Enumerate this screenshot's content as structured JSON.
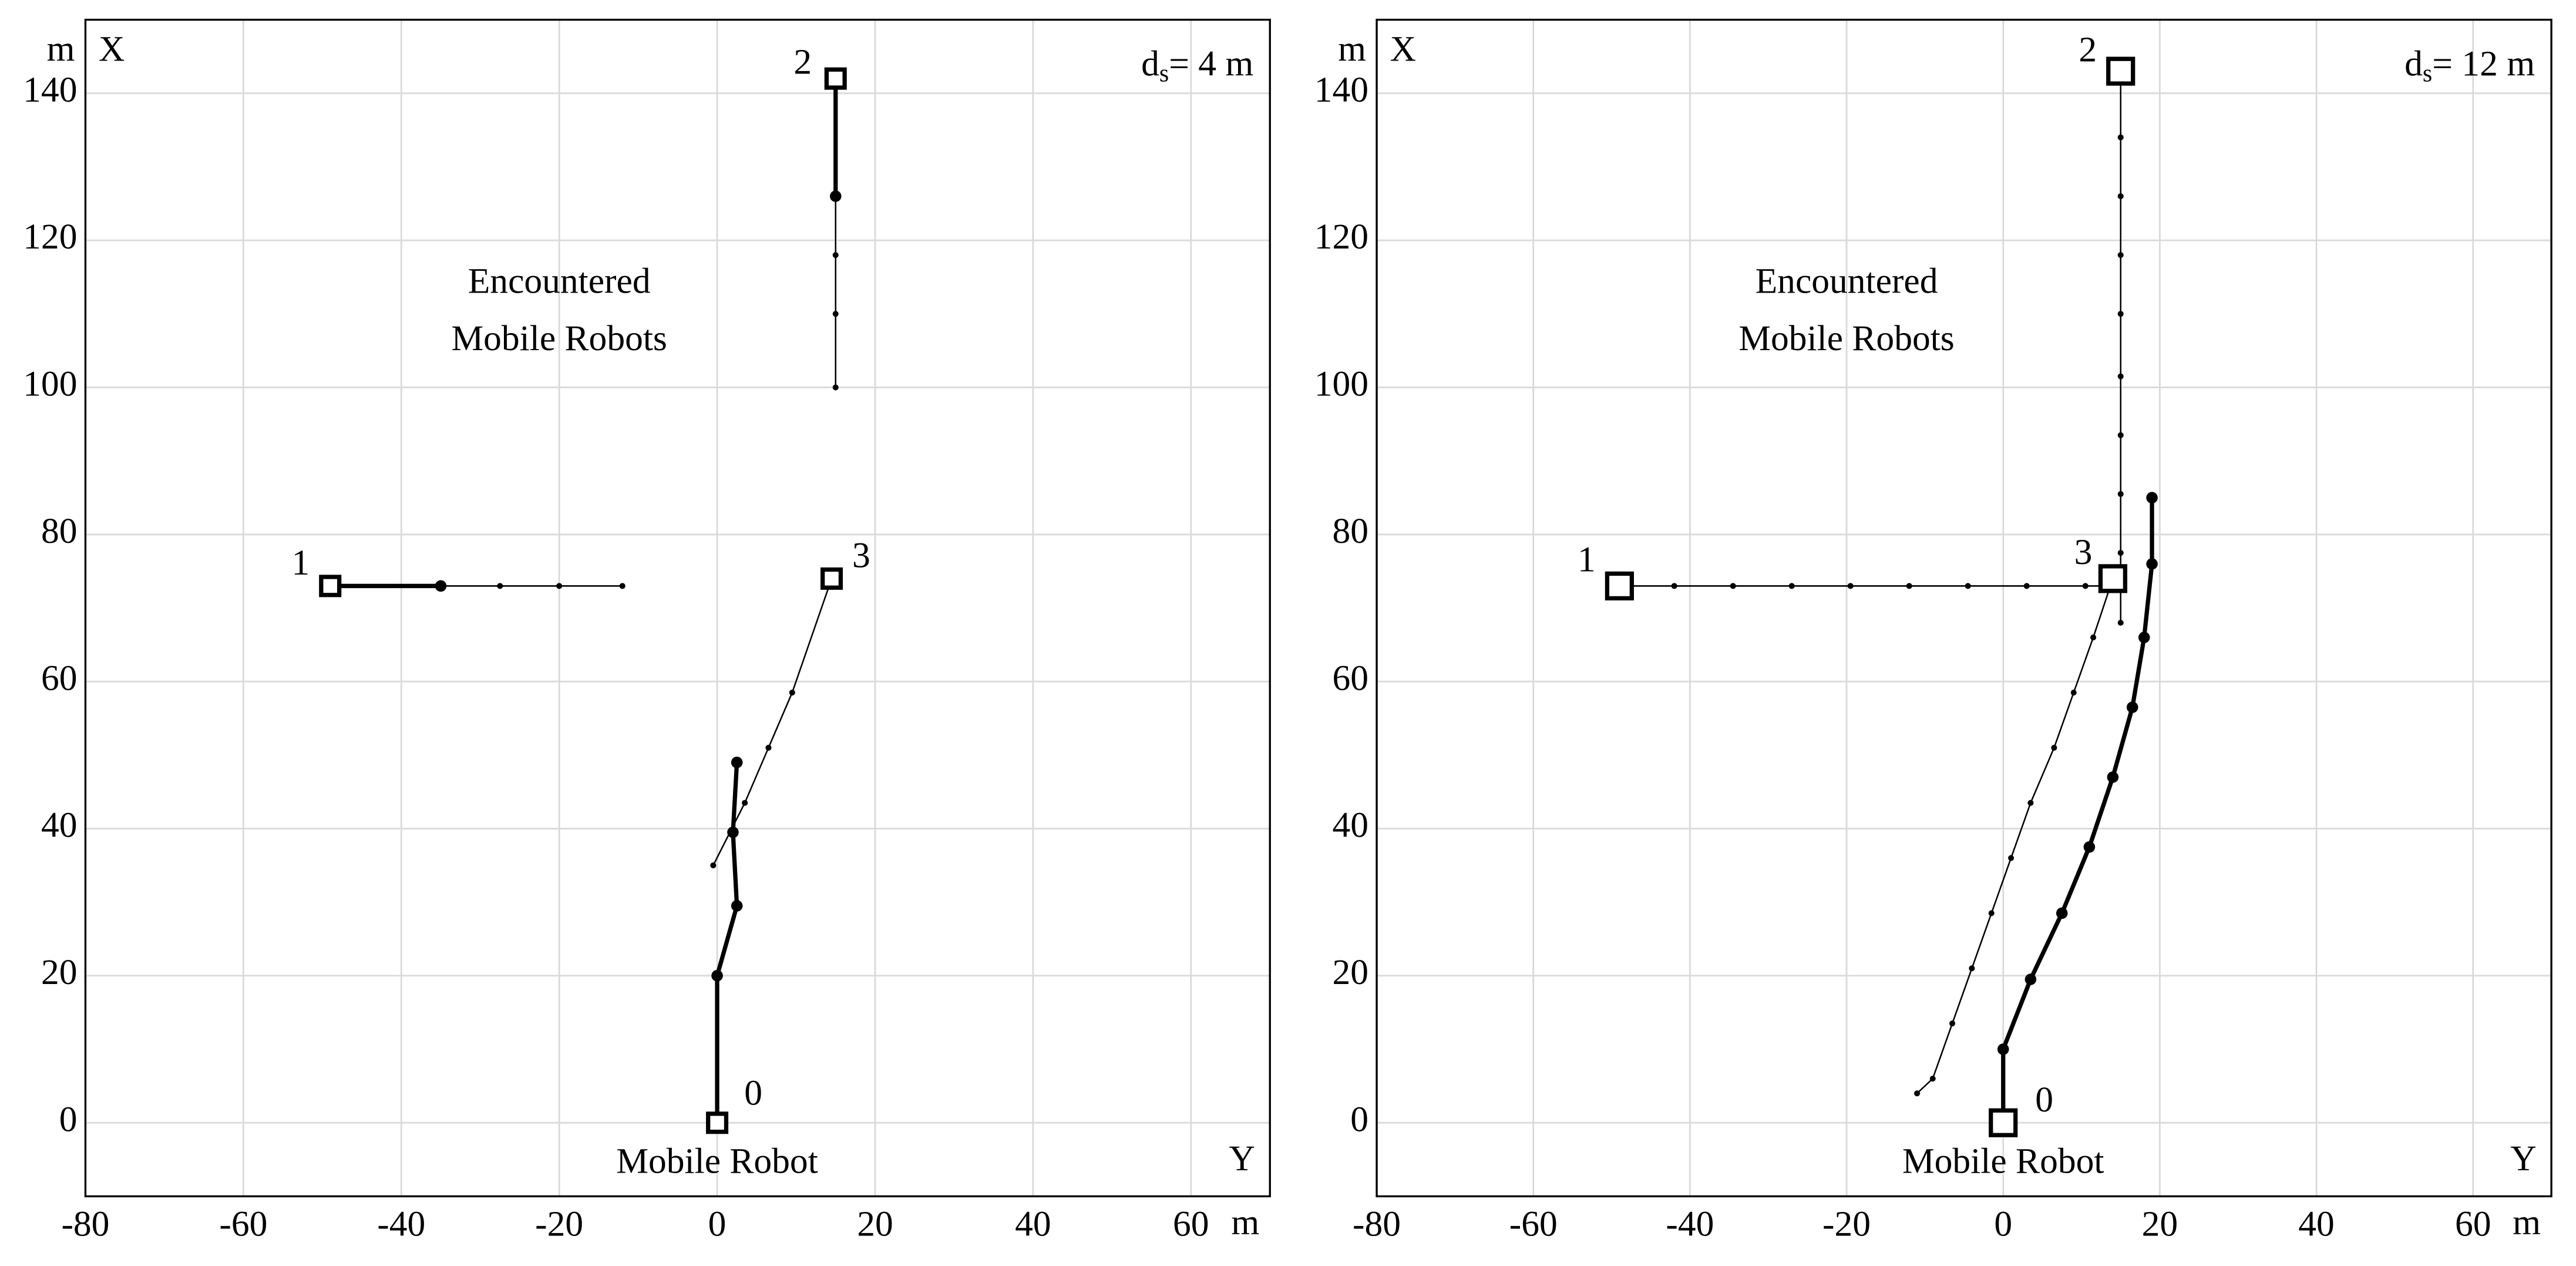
{
  "chart_data": [
    {
      "type": "line",
      "annotation": {
        "main": "d",
        "sub": "s",
        "rest": "= 4 m"
      },
      "group_label": [
        "Encountered",
        "Mobile Robots"
      ],
      "robot_label": "Mobile Robot",
      "xlabel": "Y",
      "ylabel": "X",
      "xunit": "m",
      "yunit": "m",
      "xlim": [
        -80,
        70
      ],
      "ylim": [
        -10,
        150
      ],
      "xticks": [
        -80,
        -60,
        -40,
        -20,
        0,
        20,
        40,
        60
      ],
      "yticks": [
        0,
        20,
        40,
        60,
        80,
        100,
        120,
        140
      ],
      "grid": true,
      "color": "#000000",
      "series": [
        {
          "style": "thick",
          "x": [
            0,
            0,
            2.5,
            2,
            2.5
          ],
          "values": [
            0,
            20,
            29.5,
            39.5,
            49
          ]
        },
        {
          "style": "thick",
          "x": [
            -49,
            -35
          ],
          "values": [
            73,
            73
          ]
        },
        {
          "style": "thin",
          "x": [
            -35,
            -27.5,
            -20,
            -12
          ],
          "values": [
            73,
            73,
            73,
            73
          ]
        },
        {
          "style": "thick",
          "x": [
            15,
            15
          ],
          "values": [
            142,
            126
          ]
        },
        {
          "style": "thin",
          "x": [
            15,
            15,
            15,
            15
          ],
          "values": [
            126,
            118,
            110,
            100
          ]
        },
        {
          "style": "thin",
          "x": [
            14.5,
            9.5,
            6.5,
            3.5,
            -0.5
          ],
          "values": [
            74,
            58.5,
            51,
            43.5,
            35
          ]
        }
      ],
      "robots": [
        {
          "label": "0",
          "x": 0,
          "y": 0
        },
        {
          "label": "1",
          "x": -49,
          "y": 73
        },
        {
          "label": "2",
          "x": 15,
          "y": 142
        },
        {
          "label": "3",
          "x": 14.5,
          "y": 74
        }
      ]
    },
    {
      "type": "line",
      "annotation": {
        "main": "d",
        "sub": "s",
        "rest": "= 12 m"
      },
      "group_label": [
        "Encountered",
        "Mobile Robots"
      ],
      "robot_label": "Mobile Robot",
      "xlabel": "Y",
      "ylabel": "X",
      "xunit": "m",
      "yunit": "m",
      "xlim": [
        -80,
        70
      ],
      "ylim": [
        -10,
        150
      ],
      "xticks": [
        -80,
        -60,
        -40,
        -20,
        0,
        20,
        40,
        60
      ],
      "yticks": [
        0,
        20,
        40,
        60,
        80,
        100,
        120,
        140
      ],
      "grid": true,
      "color": "#000000",
      "series": [
        {
          "style": "thick",
          "x": [
            0,
            0,
            3.5,
            7.5,
            11,
            14,
            16.5,
            18,
            19,
            19
          ],
          "values": [
            0,
            10,
            19.5,
            28.5,
            37.5,
            47,
            56.5,
            66,
            76,
            85
          ]
        },
        {
          "style": "thin",
          "x": [
            -49,
            -42,
            -34.5,
            -27,
            -19.5,
            -12,
            -4.5,
            3,
            10.5,
            14
          ],
          "values": [
            73,
            73,
            73,
            73,
            73,
            73,
            73,
            73,
            73,
            73
          ]
        },
        {
          "style": "thin",
          "x": [
            15,
            15,
            15,
            15,
            15,
            15,
            15,
            15,
            15,
            15
          ],
          "values": [
            143,
            134,
            126,
            118,
            110,
            101.5,
            93.5,
            85.5,
            77.5,
            68
          ]
        },
        {
          "style": "thin",
          "x": [
            14,
            11.5,
            9,
            6.5,
            3.5,
            1,
            -1.5,
            -4,
            -6.5,
            -9,
            -11
          ],
          "values": [
            74,
            66,
            58.5,
            51,
            43.5,
            36,
            28.5,
            21,
            13.5,
            6,
            4
          ]
        }
      ],
      "robots": [
        {
          "label": "0",
          "x": 0,
          "y": 0
        },
        {
          "label": "1",
          "x": -49,
          "y": 73
        },
        {
          "label": "2",
          "x": 15,
          "y": 143
        },
        {
          "label": "3",
          "x": 14,
          "y": 74
        }
      ]
    }
  ]
}
